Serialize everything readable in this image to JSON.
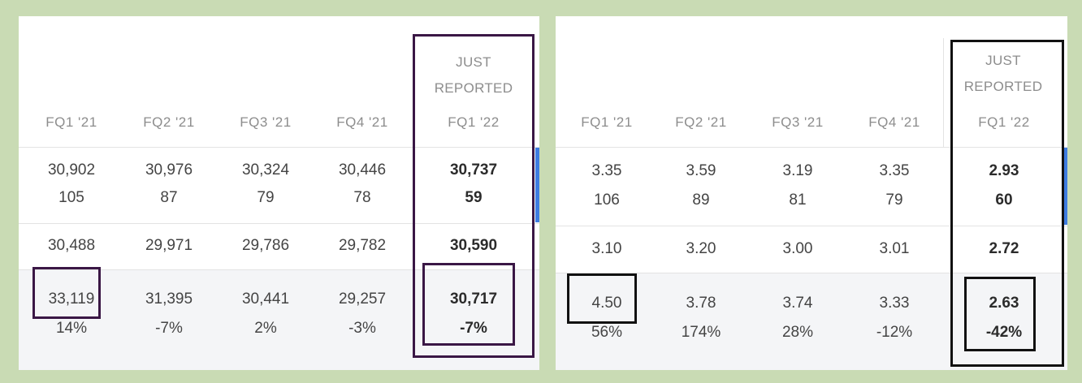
{
  "left": {
    "just_label_1": "JUST",
    "just_label_2": "REPORTED",
    "headers": [
      "FQ1 '21",
      "FQ2 '21",
      "FQ3 '21",
      "FQ4 '21",
      "FQ1 '22"
    ],
    "row1_top": [
      "30,902",
      "30,976",
      "30,324",
      "30,446",
      "30,737"
    ],
    "row1_bottom": [
      "105",
      "87",
      "79",
      "78",
      "59"
    ],
    "row2": [
      "30,488",
      "29,971",
      "29,786",
      "29,782",
      "30,590"
    ],
    "row3_top": [
      "33,119",
      "31,395",
      "30,441",
      "29,257",
      "30,717"
    ],
    "row3_bottom": [
      "14%",
      "-7%",
      "2%",
      "-3%",
      "-7%"
    ],
    "colors": {
      "highlight_box": "#3a1745",
      "accent": "#3d7be0"
    }
  },
  "right": {
    "just_label_1": "JUST",
    "just_label_2": "REPORTED",
    "headers": [
      "FQ1 '21",
      "FQ2 '21",
      "FQ3 '21",
      "FQ4 '21",
      "FQ1 '22"
    ],
    "row1_top": [
      "3.35",
      "3.59",
      "3.19",
      "3.35",
      "2.93"
    ],
    "row1_bottom": [
      "106",
      "89",
      "81",
      "79",
      "60"
    ],
    "row2": [
      "3.10",
      "3.20",
      "3.00",
      "3.01",
      "2.72"
    ],
    "row3_top": [
      "4.50",
      "3.78",
      "3.74",
      "3.33",
      "2.63"
    ],
    "row3_bottom": [
      "56%",
      "174%",
      "28%",
      "-12%",
      "-42%"
    ],
    "colors": {
      "highlight_box": "#111111",
      "accent": "#3d7be0"
    }
  }
}
